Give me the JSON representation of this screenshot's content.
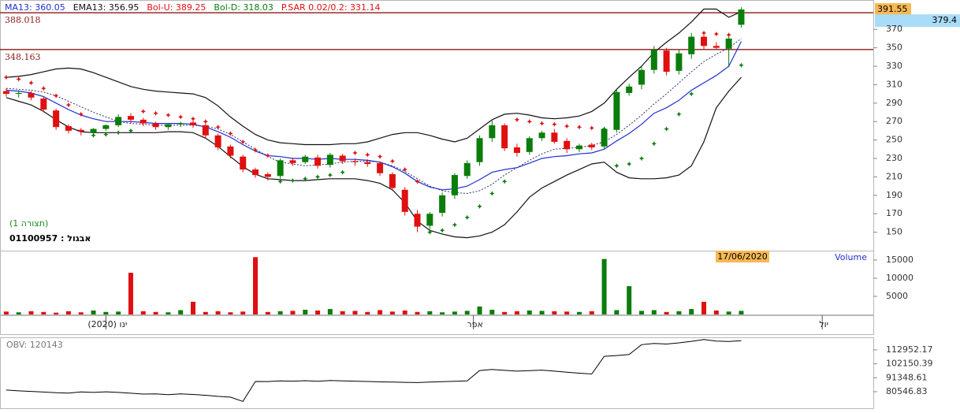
{
  "header": {
    "caption": "(תצורה 1)",
    "security": "01100957 : אבגול",
    "date": "17/06/2020"
  },
  "chart_data": [
    {
      "type": "candlestick",
      "up_color": "#0a7d0a",
      "down_color": "#e01010",
      "open": [
        303,
        300,
        301,
        295,
        282,
        265,
        261,
        258,
        262,
        266,
        276,
        272,
        268,
        264,
        267,
        269,
        266,
        255,
        243,
        232,
        218,
        213,
        211,
        228,
        226,
        231,
        223,
        233,
        227,
        226,
        225,
        213,
        196,
        170,
        157,
        171,
        190,
        211,
        226,
        252,
        266,
        242,
        237,
        252,
        258,
        249,
        240,
        245,
        243,
        261,
        301,
        310,
        326,
        347,
        325,
        343,
        362,
        352,
        349,
        375
      ],
      "high": [
        306,
        304,
        303,
        297,
        284,
        267,
        263,
        263,
        267,
        278,
        279,
        274,
        270,
        268,
        270,
        271,
        268,
        257,
        245,
        234,
        220,
        215,
        230,
        231,
        234,
        234,
        236,
        235,
        230,
        229,
        227,
        215,
        199,
        174,
        172,
        193,
        214,
        228,
        255,
        272,
        268,
        246,
        254,
        260,
        262,
        252,
        246,
        247,
        264,
        305,
        311,
        330,
        352,
        350,
        348,
        366,
        364,
        356,
        362,
        394
      ],
      "low": [
        297,
        296,
        293,
        280,
        261,
        257,
        255,
        256,
        260,
        264,
        268,
        265,
        261,
        261,
        264,
        263,
        252,
        239,
        230,
        215,
        209,
        206,
        208,
        222,
        224,
        219,
        220,
        224,
        222,
        221,
        211,
        195,
        168,
        150,
        153,
        167,
        186,
        208,
        222,
        248,
        238,
        232,
        234,
        249,
        246,
        236,
        237,
        239,
        240,
        258,
        298,
        305,
        322,
        320,
        321,
        338,
        348,
        348,
        329,
        372
      ],
      "close": [
        300,
        301,
        296,
        283,
        264,
        260,
        259,
        262,
        266,
        275,
        272,
        268,
        264,
        267,
        268,
        266,
        255,
        242,
        233,
        218,
        212,
        210,
        228,
        225,
        232,
        222,
        234,
        227,
        226,
        224,
        214,
        198,
        172,
        156,
        170,
        190,
        212,
        225,
        252,
        266,
        241,
        236,
        252,
        258,
        248,
        240,
        244,
        242,
        262,
        302,
        308,
        326,
        348,
        324,
        344,
        362,
        352,
        350,
        360,
        391.55
      ],
      "overlays": [
        {
          "name": "MA13: 360.05",
          "color": "#303070",
          "dash": true,
          "values": [
            306,
            305,
            304,
            302,
            298,
            292,
            286,
            280,
            275,
            270,
            268,
            267,
            266,
            266,
            266,
            266,
            265,
            262,
            256,
            248,
            240,
            232,
            226,
            224,
            222,
            223,
            224,
            226,
            227,
            227,
            226,
            222,
            216,
            208,
            200,
            195,
            193,
            192,
            195,
            202,
            212,
            220,
            228,
            235,
            240,
            241,
            242,
            244,
            248,
            256,
            266,
            277,
            289,
            300,
            312,
            324,
            335,
            343,
            350,
            360.05
          ]
        },
        {
          "name": "EMA13: 356.95",
          "color": "#1f2fd0",
          "dash": false,
          "values": [
            304,
            303,
            301,
            297,
            290,
            283,
            277,
            273,
            270,
            270,
            270,
            269,
            268,
            268,
            268,
            267,
            264,
            259,
            253,
            245,
            238,
            233,
            232,
            230,
            230,
            229,
            230,
            229,
            229,
            228,
            226,
            221,
            214,
            205,
            199,
            196,
            197,
            200,
            207,
            215,
            218,
            220,
            225,
            230,
            232,
            233,
            235,
            236,
            240,
            249,
            257,
            267,
            279,
            285,
            293,
            304,
            312,
            320,
            330,
            356.95
          ]
        },
        {
          "name": "Bol-U: 389.25",
          "color": "#111111",
          "dash": false,
          "values": [
            318,
            319,
            321,
            324,
            327,
            328,
            327,
            323,
            318,
            313,
            308,
            305,
            303,
            302,
            301,
            300,
            296,
            287,
            275,
            265,
            256,
            250,
            247,
            246,
            245,
            245,
            245,
            246,
            246,
            248,
            252,
            256,
            258,
            258,
            255,
            251,
            248,
            252,
            262,
            272,
            278,
            279,
            277,
            274,
            273,
            274,
            276,
            281,
            290,
            305,
            318,
            330,
            345,
            356,
            366,
            378,
            392,
            392,
            383,
            389.25
          ]
        },
        {
          "name": "Bol-D: 318.03",
          "color": "#111111",
          "dash": false,
          "values": [
            296,
            292,
            288,
            281,
            272,
            264,
            259,
            258,
            258,
            258,
            258,
            258,
            258,
            259,
            259,
            258,
            252,
            243,
            232,
            221,
            213,
            208,
            207,
            206,
            206,
            207,
            208,
            208,
            208,
            206,
            203,
            196,
            182,
            162,
            152,
            148,
            145,
            144,
            146,
            150,
            158,
            172,
            188,
            198,
            205,
            212,
            218,
            224,
            226,
            215,
            209,
            208,
            208,
            209,
            212,
            222,
            248,
            285,
            303,
            318.03
          ]
        }
      ],
      "legend_colors": [
        "#1f2fd0",
        "#111111",
        "#e01010",
        "#0a7d0a",
        "#e01010"
      ],
      "sar": {
        "name": "P.SAR 0.02/0.2: 331.14",
        "above_color": "#e01010",
        "below_color": "#0a7d0a",
        "values": [
          318,
          316,
          312,
          306,
          298,
          288,
          278,
          255,
          256,
          258,
          260,
          281,
          279,
          277,
          275,
          273,
          270,
          264,
          257,
          248,
          239,
          233,
          205,
          206,
          208,
          210,
          212,
          215,
          236,
          234,
          232,
          227,
          218,
          205,
          150,
          152,
          158,
          166,
          178,
          192,
          205,
          272,
          270,
          268,
          267,
          265,
          264,
          263,
          262,
          222,
          224,
          230,
          246,
          262,
          278,
          300,
          366,
          365,
          364,
          331.14
        ]
      },
      "levels": [
        388.018,
        348.163
      ],
      "level_color": "#8b1a1a",
      "price_labels": [
        {
          "value": 391.55,
          "color": "#f7b955"
        },
        {
          "value": 379.4,
          "color": "#a9dcf7"
        }
      ],
      "ylim": [
        130,
        395
      ],
      "yticks": [
        150,
        170,
        190,
        210,
        230,
        250,
        270,
        290,
        310,
        330,
        350,
        370
      ],
      "xlim": [
        -0.5,
        69.6
      ],
      "xticks": [
        {
          "value": 8,
          "label": "ינו (2020)"
        },
        {
          "value": 37.5,
          "label": "אפר"
        },
        {
          "value": 65.5,
          "label": "יול"
        }
      ]
    },
    {
      "type": "bar",
      "title": "Volume",
      "title_color": "#2030d0",
      "values": [
        800,
        600,
        900,
        700,
        500,
        900,
        600,
        1100,
        700,
        800,
        11500,
        900,
        700,
        600,
        1200,
        3500,
        700,
        900,
        600,
        800,
        15800,
        700,
        900,
        1000,
        1300,
        1100,
        1500,
        900,
        1000,
        700,
        1200,
        800,
        1100,
        700,
        900,
        600,
        800,
        1000,
        2200,
        1300,
        700,
        900,
        1100,
        1000,
        900,
        800,
        700,
        900,
        15300,
        1200,
        7800,
        1000,
        1200,
        700,
        900,
        1500,
        3500,
        1100,
        800,
        1000
      ],
      "ylim": [
        0,
        17600
      ],
      "yticks": [
        5000,
        10000,
        15000
      ]
    },
    {
      "type": "line",
      "title": "OBV: 120143",
      "color": "#000000",
      "values": [
        81800,
        81200,
        80800,
        80300,
        79800,
        79500,
        80400,
        80000,
        80500,
        80000,
        79400,
        78700,
        78800,
        78300,
        78900,
        78400,
        77800,
        76900,
        76300,
        73000,
        88500,
        88400,
        88900,
        88700,
        89100,
        88600,
        89200,
        88900,
        88700,
        88500,
        88200,
        88000,
        87800,
        87600,
        88000,
        88300,
        88600,
        88900,
        97000,
        97800,
        97100,
        96500,
        96900,
        97300,
        96500,
        95600,
        94900,
        94300,
        108000,
        108600,
        109400,
        117000,
        118000,
        117500,
        118400,
        119600,
        121000,
        119800,
        119500,
        120143
      ],
      "ylim": [
        67700,
        122700
      ],
      "yticks": [
        80546.83,
        91348.61,
        102150.39,
        112952.17
      ]
    }
  ]
}
